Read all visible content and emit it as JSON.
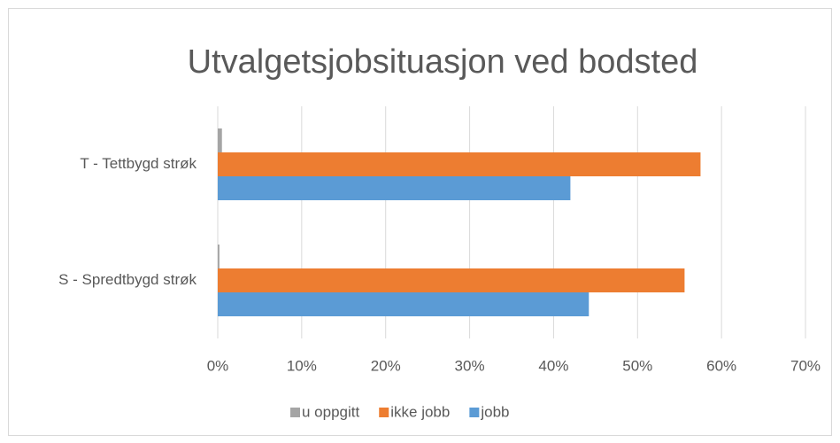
{
  "chart_data": {
    "type": "barh",
    "title": "Utvalgetsjobsituasjon ved bodsted",
    "categories": [
      "T - Tettbygd strøk",
      "S - Spredtbygd strøk"
    ],
    "series": [
      {
        "name": "u oppgitt",
        "color": "#a5a5a5",
        "values": [
          0.5,
          0.2
        ]
      },
      {
        "name": "ikke jobb",
        "color": "#ed7d31",
        "values": [
          57.5,
          55.6
        ]
      },
      {
        "name": "jobb",
        "color": "#5b9bd5",
        "values": [
          42,
          44.2
        ]
      }
    ],
    "xlim": [
      0,
      70
    ],
    "xticks": [
      {
        "value": 0,
        "label": "0%"
      },
      {
        "value": 10,
        "label": "10%"
      },
      {
        "value": 20,
        "label": "20%"
      },
      {
        "value": 30,
        "label": "30%"
      },
      {
        "value": 40,
        "label": "40%"
      },
      {
        "value": 50,
        "label": "50%"
      },
      {
        "value": 60,
        "label": "60%"
      },
      {
        "value": 70,
        "label": "70%"
      }
    ],
    "grid": true,
    "legend": "bottom"
  }
}
